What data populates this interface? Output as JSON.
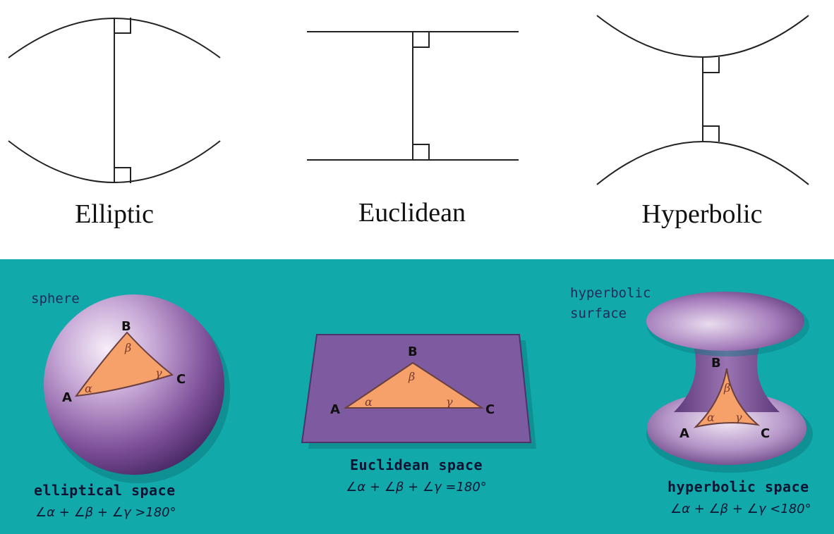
{
  "top_panel": {
    "labels": {
      "elliptic": "Elliptic",
      "euclidean": "Euclidean",
      "hyperbolic": "Hyperbolic"
    }
  },
  "bottom_panel": {
    "background_color": "#12a9ab",
    "surface_color": "#7e5aa0",
    "triangle_color": "#f6a06a",
    "sphere": {
      "object_label": "sphere",
      "vertices": {
        "a": "A",
        "b": "B",
        "c": "C"
      },
      "angles": {
        "alpha": "α",
        "beta": "β",
        "gamma": "γ"
      },
      "caption": "elliptical space",
      "formula": "∠α + ∠β + ∠γ >180°"
    },
    "plane": {
      "vertices": {
        "a": "A",
        "b": "B",
        "c": "C"
      },
      "angles": {
        "alpha": "α",
        "beta": "β",
        "gamma": "γ"
      },
      "caption": "Euclidean space",
      "formula": "∠α + ∠β + ∠γ =180°"
    },
    "hyperboloid": {
      "object_label_line1": "hyperbolic",
      "object_label_line2": "surface",
      "vertices": {
        "a": "A",
        "b": "B",
        "c": "C"
      },
      "angles": {
        "alpha": "α",
        "beta": "β",
        "gamma": "γ"
      },
      "caption": "hyperbolic space",
      "formula": "∠α + ∠β + ∠γ <180°"
    }
  }
}
